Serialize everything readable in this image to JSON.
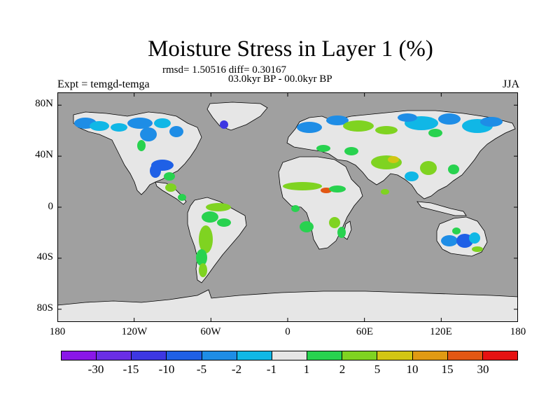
{
  "title": "Moisture Stress in Layer 1 (%)",
  "stats": "rmsd= 1.50516 diff= 0.30167",
  "period": "03.0kyr BP - 00.0kyr BP",
  "experiment": "Expt = temgd-temga",
  "season": "JJA",
  "map": {
    "lon_range": [
      -180,
      180
    ],
    "lat_range": [
      -90,
      90
    ],
    "ocean_color": "#a0a0a0",
    "land_color": "#e6e6e6",
    "lat_ticks": [
      {
        "value": 80,
        "label": "80N"
      },
      {
        "value": 40,
        "label": "40N"
      },
      {
        "value": 0,
        "label": "0"
      },
      {
        "value": -40,
        "label": "40S"
      },
      {
        "value": -80,
        "label": "80S"
      }
    ],
    "lon_ticks": [
      {
        "value": -180,
        "label": "180"
      },
      {
        "value": -120,
        "label": "120W"
      },
      {
        "value": -60,
        "label": "60W"
      },
      {
        "value": 0,
        "label": "0"
      },
      {
        "value": 60,
        "label": "60E"
      },
      {
        "value": 120,
        "label": "120E"
      },
      {
        "value": 180,
        "label": "180"
      }
    ]
  },
  "colorbar": {
    "colors": [
      "#8a17e8",
      "#6a2ee6",
      "#3d37e2",
      "#1f60e6",
      "#1e8de6",
      "#10b7e6",
      "#e6e6e6",
      "#28d24f",
      "#7fd321",
      "#d2c613",
      "#e09a13",
      "#e25713",
      "#e61212"
    ],
    "labels": [
      "-30",
      "-15",
      "-10",
      "-5",
      "-2",
      "-1",
      "1",
      "2",
      "5",
      "10",
      "15",
      "30"
    ]
  }
}
